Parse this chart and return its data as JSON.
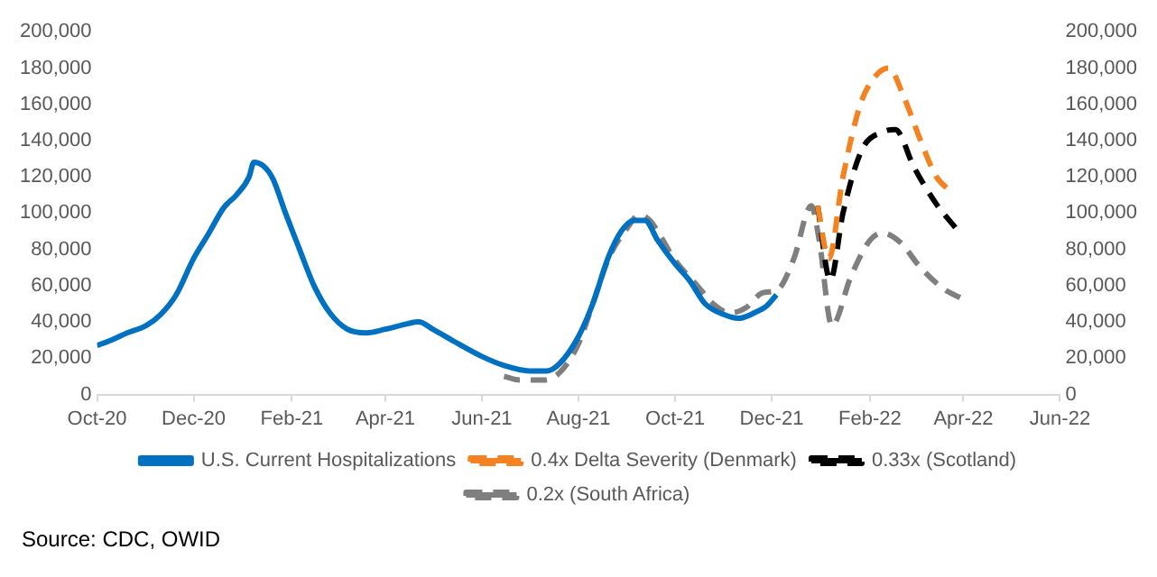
{
  "chart_data": {
    "type": "line",
    "annotations": [
      "Source: CDC, OWID"
    ],
    "xlim": [
      "2020-10-01",
      "2022-06-01"
    ],
    "xticks": [
      {
        "value": "2020-10-01",
        "label": "Oct-20"
      },
      {
        "value": "2020-12-01",
        "label": "Dec-20"
      },
      {
        "value": "2021-02-01",
        "label": "Feb-21"
      },
      {
        "value": "2021-04-01",
        "label": "Apr-21"
      },
      {
        "value": "2021-06-01",
        "label": "Jun-21"
      },
      {
        "value": "2021-08-01",
        "label": "Aug-21"
      },
      {
        "value": "2021-10-01",
        "label": "Oct-21"
      },
      {
        "value": "2021-12-01",
        "label": "Dec-21"
      },
      {
        "value": "2022-02-01",
        "label": "Feb-22"
      },
      {
        "value": "2022-04-01",
        "label": "Apr-22"
      },
      {
        "value": "2022-06-01",
        "label": "Jun-22"
      }
    ],
    "ylim": [
      0,
      200000
    ],
    "yticks": [
      {
        "value": 0,
        "label": "0"
      },
      {
        "value": 20000,
        "label": "20,000"
      },
      {
        "value": 40000,
        "label": "40,000"
      },
      {
        "value": 60000,
        "label": "60,000"
      },
      {
        "value": 80000,
        "label": "80,000"
      },
      {
        "value": 100000,
        "label": "100,000"
      },
      {
        "value": 120000,
        "label": "120,000"
      },
      {
        "value": 140000,
        "label": "140,000"
      },
      {
        "value": 160000,
        "label": "160,000"
      },
      {
        "value": 180000,
        "label": "180,000"
      },
      {
        "value": 200000,
        "label": "200,000"
      }
    ],
    "y2lim": [
      0,
      200000
    ],
    "y2ticks": [
      {
        "value": 0,
        "label": "0"
      },
      {
        "value": 20000,
        "label": "20,000"
      },
      {
        "value": 40000,
        "label": "40,000"
      },
      {
        "value": 60000,
        "label": "60,000"
      },
      {
        "value": 80000,
        "label": "80,000"
      },
      {
        "value": 100000,
        "label": "100,000"
      },
      {
        "value": 120000,
        "label": "120,000"
      },
      {
        "value": 140000,
        "label": "140,000"
      },
      {
        "value": 160000,
        "label": "160,000"
      },
      {
        "value": 180000,
        "label": "180,000"
      },
      {
        "value": 200000,
        "label": "200,000"
      }
    ],
    "legend": "bottom",
    "marker": "none",
    "series": [
      {
        "name": "U.S. Current Hospitalizations",
        "color": "#0070c0",
        "line_style": "solid",
        "x": [
          "2020-10-01",
          "2020-10-10",
          "2020-10-20",
          "2020-11-01",
          "2020-11-10",
          "2020-11-20",
          "2020-12-01",
          "2020-12-10",
          "2020-12-20",
          "2020-12-28",
          "2021-01-05",
          "2021-01-08",
          "2021-01-14",
          "2021-01-20",
          "2021-01-28",
          "2021-02-05",
          "2021-02-15",
          "2021-02-25",
          "2021-03-08",
          "2021-03-20",
          "2021-04-01",
          "2021-04-15",
          "2021-04-22",
          "2021-05-01",
          "2021-05-15",
          "2021-06-01",
          "2021-06-15",
          "2021-07-01",
          "2021-07-12",
          "2021-07-20",
          "2021-08-01",
          "2021-08-10",
          "2021-08-20",
          "2021-08-28",
          "2021-09-05",
          "2021-09-12",
          "2021-09-20",
          "2021-10-01",
          "2021-10-10",
          "2021-10-20",
          "2021-11-01",
          "2021-11-10",
          "2021-11-20",
          "2021-11-28",
          "2021-12-04"
        ],
        "values": [
          27000,
          30000,
          34000,
          38000,
          44000,
          55000,
          75000,
          88000,
          103000,
          110000,
          120000,
          128000,
          126000,
          119000,
          100000,
          82000,
          60000,
          45000,
          36000,
          34000,
          36000,
          39000,
          40000,
          36000,
          29000,
          21000,
          16000,
          13000,
          13000,
          17000,
          32000,
          50000,
          76000,
          90000,
          96000,
          96000,
          85000,
          72000,
          63000,
          50000,
          44000,
          42000,
          45000,
          49000,
          55000
        ]
      },
      {
        "name": "0.4x Delta Severity (Denmark)",
        "color": "#f58220",
        "line_style": "dashed",
        "x": [
          "2021-12-30",
          "2022-01-06",
          "2022-01-15",
          "2022-01-26",
          "2022-02-05",
          "2022-02-13",
          "2022-02-22",
          "2022-03-05",
          "2022-03-15",
          "2022-03-24"
        ],
        "values": [
          104000,
          75000,
          120000,
          160000,
          176000,
          180000,
          165000,
          140000,
          120000,
          112000
        ]
      },
      {
        "name": "0.33x (Scotland)",
        "color": "#000000",
        "line_style": "dashed",
        "x": [
          "2021-12-30",
          "2022-01-07",
          "2022-01-15",
          "2022-01-27",
          "2022-02-10",
          "2022-02-17",
          "2022-03-01",
          "2022-03-15",
          "2022-03-27"
        ],
        "values": [
          104000,
          63000,
          100000,
          135000,
          145000,
          146000,
          125000,
          105000,
          92000
        ]
      },
      {
        "name": "0.2x (South Africa)",
        "color": "#7f7f7f",
        "line_style": "dashed",
        "x": [
          "2021-06-15",
          "2021-06-25",
          "2021-07-10",
          "2021-07-20",
          "2021-08-01",
          "2021-08-10",
          "2021-08-20",
          "2021-09-01",
          "2021-09-08",
          "2021-09-15",
          "2021-10-01",
          "2021-10-15",
          "2021-10-25",
          "2021-11-05",
          "2021-11-15",
          "2021-11-25",
          "2021-12-05",
          "2021-12-15",
          "2021-12-26",
          "2021-12-31",
          "2022-01-08",
          "2022-01-20",
          "2022-02-01",
          "2022-02-09",
          "2022-02-20",
          "2022-03-05",
          "2022-03-20",
          "2022-03-31"
        ],
        "values": [
          10000,
          8000,
          8000,
          12000,
          28000,
          50000,
          75000,
          92000,
          99000,
          96000,
          74000,
          60000,
          50000,
          45000,
          48000,
          56000,
          58000,
          75000,
          104000,
          85000,
          38000,
          65000,
          85000,
          89000,
          84000,
          70000,
          58000,
          53000
        ]
      }
    ]
  }
}
